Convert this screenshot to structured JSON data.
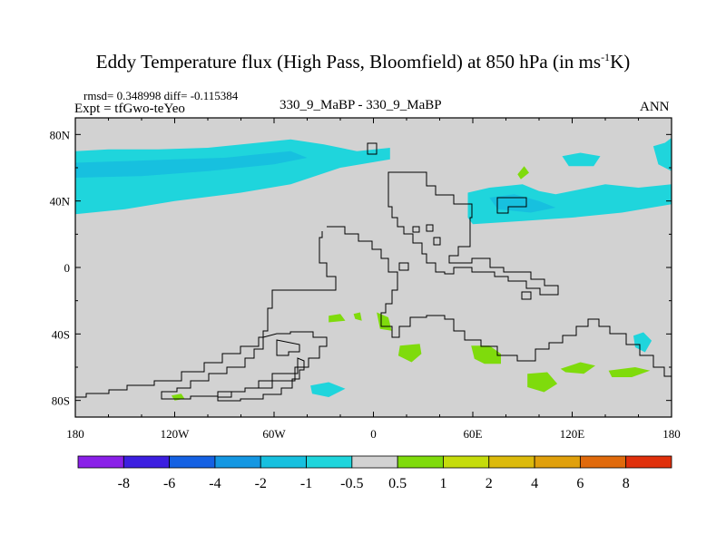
{
  "title_main": "Eddy Temperature flux (High Pass, Bloomfield) at 850 hPa (in ms",
  "title_sup": "-1",
  "title_end": "K)",
  "stats_text": "rmsd= 0.348998 diff= -0.115384",
  "expt_text": "Expt = tfGwo-teYeo",
  "cases_text": "330_9_MaBP - 330_9_MaBP",
  "season_text": "ANN",
  "colors": {
    "land": "#d2d2d2",
    "cyan": "#1fd5dc",
    "cyan_dark": "#17c0df",
    "green": "#7fdb0c",
    "coast": "#000000"
  },
  "chart_data": {
    "type": "heatmap",
    "title": "Eddy Temperature flux (High Pass, Bloomfield) at 850 hPa (in ms-1K)",
    "xlim": [
      -180,
      180
    ],
    "ylim": [
      -90,
      90
    ],
    "x_ticks": [
      {
        "value": -180,
        "label": "180"
      },
      {
        "value": -120,
        "label": "120W"
      },
      {
        "value": -60,
        "label": "60W"
      },
      {
        "value": 0,
        "label": "0"
      },
      {
        "value": 60,
        "label": "60E"
      },
      {
        "value": 120,
        "label": "120E"
      },
      {
        "value": 180,
        "label": "180"
      }
    ],
    "y_ticks": [
      {
        "value": 80,
        "label": "80N"
      },
      {
        "value": 40,
        "label": "40N"
      },
      {
        "value": 0,
        "label": "0"
      },
      {
        "value": -40,
        "label": "40S"
      },
      {
        "value": -80,
        "label": "80S"
      }
    ],
    "colorbar": {
      "colors": [
        "#8a20e8",
        "#3c1fe0",
        "#1561e3",
        "#1497e2",
        "#17c0df",
        "#1fd5dc",
        "#d2d2d2",
        "#7fdb0c",
        "#c5dc0c",
        "#dcba0c",
        "#e0a00c",
        "#e06a0c",
        "#e0300c"
      ],
      "labels": [
        "-8",
        "-6",
        "-4",
        "-2",
        "-1",
        "-0.5",
        "0.5",
        "1",
        "2",
        "4",
        "6",
        "8"
      ]
    },
    "regions": [
      {
        "level": "-1 to -0.5",
        "pts": [
          [
            -180,
            70
          ],
          [
            -160,
            71
          ],
          [
            -130,
            71
          ],
          [
            -100,
            72
          ],
          [
            -70,
            75
          ],
          [
            -50,
            77
          ],
          [
            -30,
            74
          ],
          [
            -10,
            70
          ],
          [
            10,
            72
          ],
          [
            10,
            65
          ],
          [
            -20,
            60
          ],
          [
            -50,
            50
          ],
          [
            -80,
            45
          ],
          [
            -120,
            40
          ],
          [
            -150,
            35
          ],
          [
            -180,
            32
          ]
        ]
      },
      {
        "level": "-2 to -1",
        "pts": [
          [
            -180,
            63
          ],
          [
            -150,
            64
          ],
          [
            -120,
            65
          ],
          [
            -90,
            66
          ],
          [
            -70,
            68
          ],
          [
            -50,
            70
          ],
          [
            -40,
            66
          ],
          [
            -60,
            62
          ],
          [
            -100,
            58
          ],
          [
            -140,
            55
          ],
          [
            -180,
            54
          ]
        ]
      },
      {
        "level": "-1 to -0.5",
        "pts": [
          [
            57,
            45
          ],
          [
            70,
            48
          ],
          [
            90,
            50
          ],
          [
            100,
            46
          ],
          [
            110,
            44
          ],
          [
            125,
            47
          ],
          [
            140,
            50
          ],
          [
            160,
            48
          ],
          [
            180,
            50
          ],
          [
            180,
            38
          ],
          [
            150,
            33
          ],
          [
            120,
            30
          ],
          [
            90,
            28
          ],
          [
            60,
            26
          ],
          [
            57,
            30
          ]
        ]
      },
      {
        "level": "-2 to -1",
        "pts": [
          [
            70,
            42
          ],
          [
            85,
            44
          ],
          [
            100,
            40
          ],
          [
            110,
            36
          ],
          [
            95,
            33
          ],
          [
            75,
            35
          ]
        ]
      },
      {
        "level": "-1 to -0.5",
        "pts": [
          [
            114,
            67
          ],
          [
            125,
            69
          ],
          [
            137,
            67
          ],
          [
            133,
            61
          ],
          [
            118,
            61
          ]
        ]
      },
      {
        "level": "-1 to -0.5",
        "pts": [
          [
            169,
            73
          ],
          [
            176,
            75
          ],
          [
            180,
            78
          ],
          [
            180,
            58
          ],
          [
            172,
            62
          ]
        ]
      },
      {
        "level": "-1 to -0.5",
        "pts": [
          [
            157,
            -41
          ],
          [
            163,
            -39
          ],
          [
            168,
            -44
          ],
          [
            164,
            -51
          ],
          [
            158,
            -48
          ]
        ]
      },
      {
        "level": "-1 to -0.5",
        "pts": [
          [
            -38,
            -71
          ],
          [
            -27,
            -69
          ],
          [
            -17,
            -73
          ],
          [
            -27,
            -78
          ],
          [
            -37,
            -76
          ]
        ]
      },
      {
        "level": "0.5 to 1",
        "pts": [
          [
            87,
            56
          ],
          [
            91,
            61
          ],
          [
            94,
            57
          ],
          [
            89,
            53
          ]
        ]
      },
      {
        "level": "0.5 to 1",
        "pts": [
          [
            -27,
            -29
          ],
          [
            -20,
            -28
          ],
          [
            -17,
            -32
          ],
          [
            -27,
            -33
          ]
        ]
      },
      {
        "level": "0.5 to 1",
        "pts": [
          [
            -12,
            -28
          ],
          [
            -8,
            -27
          ],
          [
            -7,
            -32
          ],
          [
            -11,
            -31
          ]
        ]
      },
      {
        "level": "0.5 to 1",
        "pts": [
          [
            2,
            -27
          ],
          [
            9,
            -30
          ],
          [
            11,
            -38
          ],
          [
            4,
            -37
          ]
        ]
      },
      {
        "level": "0.5 to 1",
        "pts": [
          [
            16,
            -47
          ],
          [
            28,
            -46
          ],
          [
            29,
            -52
          ],
          [
            23,
            -57
          ],
          [
            15,
            -53
          ]
        ]
      },
      {
        "level": "0.5 to 1",
        "pts": [
          [
            59,
            -47
          ],
          [
            70,
            -47
          ],
          [
            77,
            -52
          ],
          [
            77,
            -58
          ],
          [
            67,
            -58
          ],
          [
            61,
            -55
          ]
        ]
      },
      {
        "level": "0.5 to 1",
        "pts": [
          [
            93,
            -64
          ],
          [
            105,
            -63
          ],
          [
            111,
            -70
          ],
          [
            103,
            -75
          ],
          [
            93,
            -72
          ]
        ]
      },
      {
        "level": "0.5 to 1",
        "pts": [
          [
            113,
            -61
          ],
          [
            125,
            -57
          ],
          [
            134,
            -59
          ],
          [
            127,
            -64
          ],
          [
            116,
            -63
          ]
        ]
      },
      {
        "level": "0.5 to 1",
        "pts": [
          [
            142,
            -62
          ],
          [
            158,
            -60
          ],
          [
            167,
            -62
          ],
          [
            156,
            -66
          ],
          [
            144,
            -66
          ]
        ]
      },
      {
        "level": "0.5 to 1",
        "pts": [
          [
            -122,
            -77
          ],
          [
            -116,
            -76
          ],
          [
            -114,
            -79
          ],
          [
            -120,
            -80
          ]
        ]
      }
    ]
  }
}
